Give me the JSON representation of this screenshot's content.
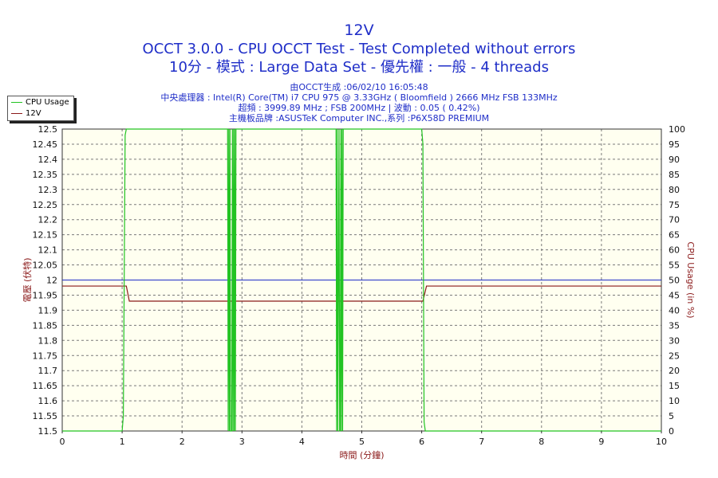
{
  "header": {
    "title": "12V",
    "subtitle1": "OCCT 3.0.0 - CPU OCCT Test - Test Completed without errors",
    "subtitle2": "10分 - 模式 : Large Data Set - 優先權 : 一般 - 4 threads",
    "info": [
      "由OCCT生成 :06/02/10 16:05:48",
      "中央處理器 : Intel(R) Core(TM) i7 CPU 975 @ 3.33GHz ( Bloomfield ) 2666 MHz FSB 133MHz",
      "超頻 : 3999.89 MHz ; FSB 200MHz | 波動 : 0.05 ( 0.42%)",
      "主機板品牌 :ASUSTeK Computer INC.,系列 :P6X58D PREMIUM"
    ]
  },
  "legend": [
    {
      "name": "CPU Usage",
      "color": "#22c322"
    },
    {
      "name": "12V",
      "color": "#8b1a1a"
    }
  ],
  "colors": {
    "cpu": "#22c322",
    "volt": "#8b1a1a",
    "avg": "#1f2ec8",
    "plot_bg": "#fffff0",
    "grid": "#7a7a7a"
  },
  "chart_data": {
    "type": "line",
    "xlabel": "時間 (分鐘)",
    "ylabel_left": "電壓 (伏特)",
    "ylabel_right": "CPU Usage (in %)",
    "xlim": [
      0,
      10
    ],
    "ylim_left": [
      11.5,
      12.5
    ],
    "ylim_right": [
      0,
      100
    ],
    "x_ticks": [
      0,
      1,
      2,
      3,
      4,
      5,
      6,
      7,
      8,
      9,
      10
    ],
    "y_left_ticks": [
      "12.5",
      "12.45",
      "12.4",
      "12.35",
      "12.3",
      "12.25",
      "12.2",
      "12.15",
      "12.1",
      "12.05",
      "12",
      "11.95",
      "11.9",
      "11.85",
      "11.8",
      "11.75",
      "11.7",
      "11.65",
      "11.6",
      "11.55",
      "11.5"
    ],
    "y_right_ticks": [
      "100",
      "95",
      "90",
      "85",
      "80",
      "75",
      "70",
      "65",
      "60",
      "55",
      "50",
      "45",
      "40",
      "35",
      "30",
      "25",
      "20",
      "15",
      "10",
      "5",
      "0"
    ],
    "grid": true,
    "series": [
      {
        "name": "12V",
        "axis": "left",
        "x": [
          0,
          1.07,
          1.12,
          6.02,
          6.08,
          10
        ],
        "y": [
          11.98,
          11.98,
          11.93,
          11.93,
          11.98,
          11.98
        ]
      },
      {
        "name": "CPU Usage",
        "axis": "right",
        "x": [
          0,
          1.0,
          1.02,
          1.05,
          1.07,
          2.76,
          2.77,
          2.78,
          2.79,
          2.8,
          2.81,
          2.83,
          2.84,
          2.85,
          2.86,
          2.87,
          2.88,
          2.89,
          2.9,
          4.57,
          4.58,
          4.59,
          4.6,
          4.62,
          4.63,
          4.64,
          4.65,
          4.66,
          4.67,
          4.68,
          4.69,
          6.0,
          6.02,
          6.04,
          6.06,
          6.08,
          10
        ],
        "y": [
          0,
          0,
          5,
          98,
          100,
          100,
          0,
          100,
          0,
          100,
          0,
          0,
          100,
          0,
          100,
          0,
          100,
          0,
          100,
          100,
          0,
          100,
          0,
          100,
          0,
          0,
          100,
          0,
          100,
          0,
          100,
          100,
          95,
          3,
          0,
          0,
          0
        ]
      }
    ],
    "reference_line": {
      "axis": "left",
      "value": 12
    }
  }
}
